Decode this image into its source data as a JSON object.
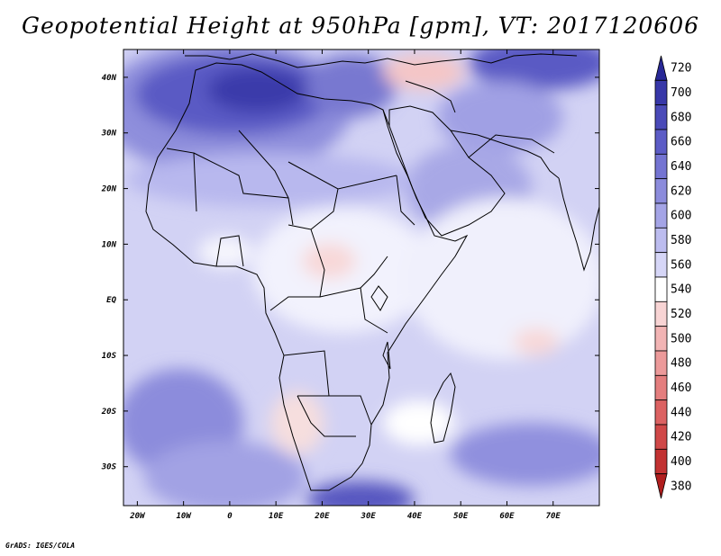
{
  "title": "Geopotential Height at 950hPa [gpm], VT: 2017120606",
  "credit": "GrADS: IGES/COLA",
  "map": {
    "projection": "latlon",
    "lon_range": [
      -23,
      80
    ],
    "lat_range": [
      -37,
      45
    ],
    "lon_ticks": [
      {
        "value": -20,
        "label": "20W"
      },
      {
        "value": -10,
        "label": "10W"
      },
      {
        "value": 0,
        "label": "0"
      },
      {
        "value": 10,
        "label": "10E"
      },
      {
        "value": 20,
        "label": "20E"
      },
      {
        "value": 30,
        "label": "30E"
      },
      {
        "value": 40,
        "label": "40E"
      },
      {
        "value": 50,
        "label": "50E"
      },
      {
        "value": 60,
        "label": "60E"
      },
      {
        "value": 70,
        "label": "70E"
      }
    ],
    "lat_ticks": [
      {
        "value": 40,
        "label": "40N"
      },
      {
        "value": 30,
        "label": "30N"
      },
      {
        "value": 20,
        "label": "20N"
      },
      {
        "value": 10,
        "label": "10N"
      },
      {
        "value": 0,
        "label": "EQ"
      },
      {
        "value": -10,
        "label": "10S"
      },
      {
        "value": -20,
        "label": "20S"
      },
      {
        "value": -30,
        "label": "30S"
      }
    ]
  },
  "colorbar": {
    "levels": [
      720,
      700,
      680,
      660,
      640,
      620,
      600,
      580,
      560,
      540,
      520,
      500,
      480,
      460,
      440,
      420,
      400,
      380
    ],
    "colors": [
      "#282896",
      "#3737a8",
      "#4a4ab8",
      "#5c5cc6",
      "#7474d2",
      "#8c8cdc",
      "#a4a4e6",
      "#bcbcef",
      "#d6d6f7",
      "#ffffff",
      "#f8d4d4",
      "#f2b4b4",
      "#ec9a9a",
      "#e47e7e",
      "#dc6262",
      "#d04848",
      "#c23232",
      "#b01e1e"
    ]
  }
}
